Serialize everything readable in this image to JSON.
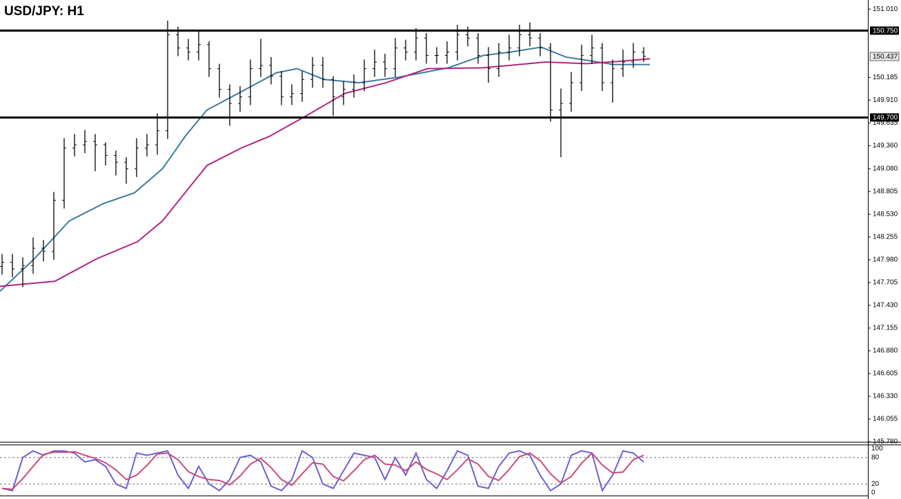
{
  "chart_data": [
    {
      "type": "ohlc",
      "title": "USD/JPY: H1",
      "color": "#000000",
      "x": [
        1,
        2,
        3,
        4,
        5,
        6,
        7,
        8,
        9,
        10,
        11,
        12,
        13,
        14,
        15,
        16,
        17,
        18,
        19,
        20,
        21,
        22,
        23,
        24,
        25,
        26,
        27,
        28,
        29,
        30,
        31,
        32,
        33,
        34,
        35,
        36,
        37,
        38,
        39,
        40,
        41,
        42,
        43,
        44,
        45,
        46,
        47,
        48,
        49,
        50,
        51,
        52,
        53,
        54,
        55,
        56,
        57,
        58,
        59,
        60,
        61,
        62,
        63
      ],
      "open": [
        147.9,
        147.95,
        147.87,
        147.91,
        148.12,
        148.08,
        148.7,
        149.33,
        149.37,
        149.41,
        149.37,
        149.24,
        149.16,
        149.08,
        149.33,
        149.37,
        149.54,
        150.7,
        150.54,
        150.49,
        150.58,
        150.29,
        150.04,
        149.87,
        149.95,
        150.29,
        150.33,
        150.2,
        149.95,
        149.99,
        150.16,
        150.33,
        150.16,
        149.95,
        150.04,
        150.12,
        150.29,
        150.37,
        150.29,
        150.54,
        150.49,
        150.66,
        150.45,
        150.45,
        150.49,
        150.7,
        150.66,
        150.45,
        150.29,
        150.49,
        150.54,
        150.7,
        150.66,
        150.54,
        149.79,
        149.87,
        150.12,
        150.45,
        150.54,
        150.12,
        150.29,
        150.37,
        150.49
      ],
      "high": [
        148.05,
        148.05,
        148.01,
        148.25,
        148.22,
        148.8,
        149.45,
        149.5,
        149.55,
        149.5,
        149.4,
        149.3,
        149.22,
        149.45,
        149.5,
        149.75,
        150.87,
        150.8,
        150.65,
        150.76,
        150.62,
        150.35,
        150.1,
        150.08,
        150.4,
        150.65,
        150.43,
        150.26,
        150.1,
        150.26,
        150.43,
        150.43,
        150.2,
        150.14,
        150.22,
        150.4,
        150.52,
        150.47,
        150.66,
        150.64,
        150.78,
        150.72,
        150.55,
        150.62,
        150.82,
        150.8,
        150.72,
        150.55,
        150.6,
        150.7,
        150.82,
        150.85,
        150.72,
        150.6,
        150.05,
        150.25,
        150.58,
        150.7,
        150.6,
        150.4,
        150.52,
        150.6,
        150.55
      ],
      "low": [
        147.8,
        147.77,
        147.65,
        147.81,
        147.96,
        147.98,
        148.6,
        149.23,
        149.27,
        149.05,
        149.12,
        149.0,
        148.9,
        148.98,
        149.23,
        149.25,
        149.44,
        150.44,
        150.39,
        150.39,
        150.19,
        149.94,
        149.6,
        149.77,
        149.85,
        150.19,
        150.1,
        149.85,
        149.85,
        149.89,
        150.06,
        150.06,
        149.72,
        149.85,
        149.94,
        150.02,
        150.19,
        150.19,
        150.19,
        150.39,
        150.39,
        150.35,
        150.35,
        150.35,
        150.39,
        150.56,
        150.35,
        150.12,
        150.19,
        150.39,
        150.44,
        150.56,
        150.44,
        149.65,
        149.22,
        149.77,
        150.02,
        150.35,
        150.02,
        149.88,
        150.19,
        150.3,
        150.37
      ],
      "close": [
        147.95,
        147.87,
        147.91,
        148.12,
        148.08,
        148.7,
        149.33,
        149.37,
        149.41,
        149.37,
        149.24,
        149.16,
        149.08,
        149.33,
        149.37,
        149.54,
        150.7,
        150.54,
        150.49,
        150.58,
        150.29,
        150.04,
        149.87,
        149.95,
        150.29,
        150.33,
        150.2,
        149.95,
        149.99,
        150.16,
        150.33,
        150.16,
        149.95,
        150.04,
        150.12,
        150.29,
        150.37,
        150.29,
        150.54,
        150.49,
        150.66,
        150.45,
        150.45,
        150.49,
        150.7,
        150.66,
        150.45,
        150.29,
        150.49,
        150.54,
        150.7,
        150.66,
        150.54,
        149.79,
        149.87,
        150.12,
        150.45,
        150.54,
        150.12,
        150.29,
        150.37,
        150.49,
        150.44
      ],
      "series": [
        {
          "color": "#3a7aa0",
          "x": [
            0.8,
            4.1,
            7.5,
            10.8,
            13.8,
            16.5,
            18.8,
            20.8,
            23.8,
            27.5,
            29.5,
            32.1,
            35.5,
            39.5,
            44.1,
            47.5,
            50.1,
            53.1,
            55.5,
            58.1,
            60.1,
            63.6
          ],
          "values": [
            147.6,
            147.99,
            148.45,
            148.66,
            148.79,
            149.08,
            149.49,
            149.79,
            149.99,
            150.24,
            150.29,
            150.16,
            150.12,
            150.19,
            150.3,
            150.45,
            150.49,
            150.55,
            150.43,
            150.38,
            150.34,
            150.34
          ]
        },
        {
          "color": "#b0257e",
          "x": [
            0.8,
            6.1,
            10.1,
            14.1,
            16.5,
            20.8,
            24.1,
            26.8,
            30.1,
            34.1,
            38.1,
            42.1,
            47.5,
            53.5,
            57.5,
            60.8,
            63.6
          ],
          "values": [
            147.66,
            147.72,
            147.99,
            148.2,
            148.45,
            149.12,
            149.33,
            149.47,
            149.7,
            149.99,
            150.12,
            150.29,
            150.3,
            150.37,
            150.35,
            150.38,
            150.41
          ]
        }
      ],
      "hlines": [
        {
          "value": 150.75,
          "label": "150.750"
        },
        {
          "value": 149.7,
          "label": "149.700"
        }
      ],
      "last_price": {
        "value": 150.437,
        "label": "150.437"
      },
      "xlim": [
        1,
        63
      ],
      "ylim": [
        145.78,
        151.12
      ],
      "yticks": [
        {
          "value": 151.01,
          "label": "151.010"
        },
        150.185,
        {
          "value": 149.91,
          "label": "149.910"
        },
        149.635,
        {
          "value": 149.36,
          "label": "149.360"
        },
        {
          "value": 149.08,
          "label": "149.080"
        },
        148.805,
        {
          "value": 148.53,
          "label": "148.530"
        },
        148.255,
        {
          "value": 147.98,
          "label": "147.980"
        },
        147.705,
        {
          "value": 147.43,
          "label": "147.430"
        },
        147.155,
        {
          "value": 146.88,
          "label": "146.880"
        },
        146.605,
        {
          "value": 146.33,
          "label": "146.330"
        },
        146.055,
        {
          "value": 145.78,
          "label": "145.780"
        }
      ]
    },
    {
      "type": "line",
      "x": [
        1,
        2,
        3,
        4,
        5,
        6,
        7,
        8,
        9,
        10,
        11,
        12,
        13,
        14,
        15,
        16,
        17,
        18,
        19,
        20,
        21,
        22,
        23,
        24,
        25,
        26,
        27,
        28,
        29,
        30,
        31,
        32,
        33,
        34,
        35,
        36,
        37,
        38,
        39,
        40,
        41,
        42,
        43,
        44,
        45,
        46,
        47,
        48,
        49,
        50,
        51,
        52,
        53,
        54,
        55,
        56,
        57,
        58,
        59,
        60,
        61,
        62,
        63
      ],
      "series": [
        {
          "color": "#6a5fd6",
          "values": [
            10,
            5,
            80,
            95,
            85,
            95,
            95,
            90,
            70,
            75,
            60,
            20,
            10,
            90,
            85,
            90,
            95,
            40,
            10,
            60,
            20,
            5,
            30,
            80,
            85,
            70,
            15,
            5,
            30,
            95,
            80,
            20,
            10,
            50,
            90,
            85,
            80,
            30,
            80,
            40,
            90,
            30,
            10,
            50,
            95,
            85,
            15,
            10,
            60,
            90,
            95,
            85,
            40,
            5,
            20,
            85,
            95,
            90,
            5,
            40,
            95,
            90,
            70
          ]
        },
        {
          "color": "#cc4a7a",
          "values": [
            10,
            8,
            32,
            60,
            87,
            92,
            92,
            93,
            85,
            78,
            68,
            52,
            30,
            40,
            62,
            88,
            90,
            75,
            48,
            37,
            30,
            28,
            18,
            38,
            65,
            78,
            57,
            30,
            17,
            43,
            68,
            65,
            37,
            27,
            50,
            75,
            85,
            65,
            63,
            50,
            70,
            53,
            43,
            30,
            52,
            77,
            65,
            37,
            28,
            53,
            82,
            90,
            73,
            43,
            22,
            37,
            67,
            90,
            63,
            45,
            47,
            75,
            85
          ]
        }
      ],
      "xlim": [
        1,
        63
      ],
      "ylim": [
        0,
        100
      ],
      "yticks": [
        100,
        80,
        20,
        0
      ]
    }
  ]
}
